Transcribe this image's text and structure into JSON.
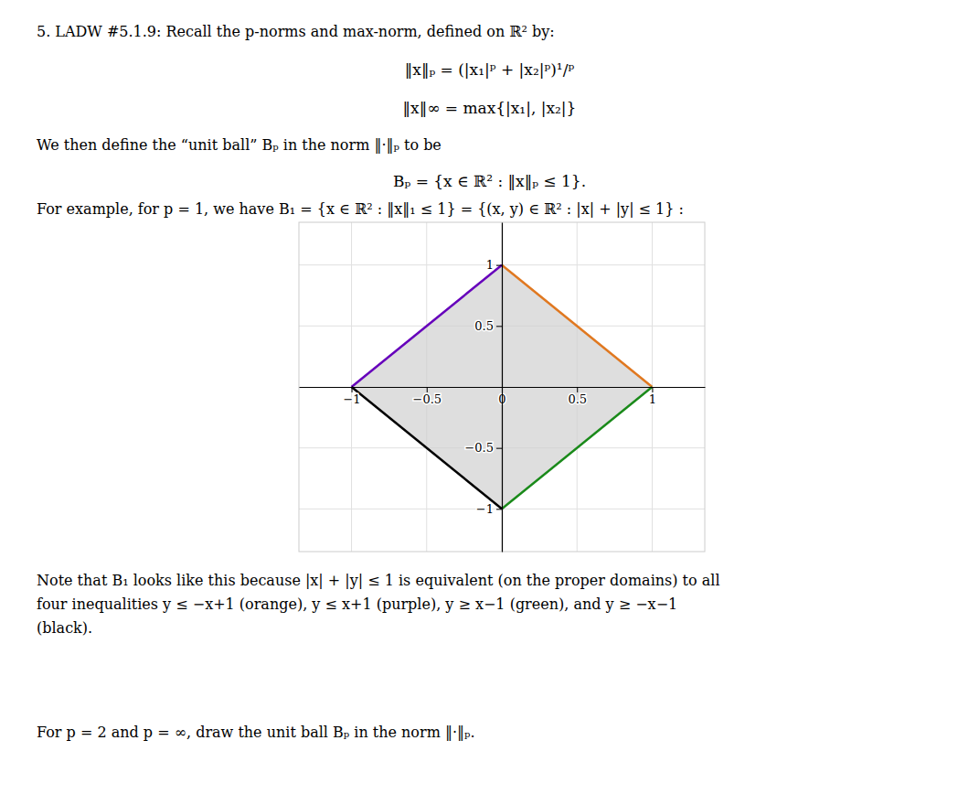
{
  "chart_data": {
    "type": "line",
    "title": "5.  LADW #5.1.9: Recall the p-norms and max-norm, defined on ℝ² by:",
    "annotations": [
      "‖x‖ₚ = (|x₁|ᵖ + |x₂|ᵖ)¹/ᵖ",
      "‖x‖∞ = max{|x₁|, |x₂|}",
      "We then define the “unit ball” Bₚ in the norm ‖·‖ₚ to be",
      "Bₚ = {x ∈ ℝ² : ‖x‖ₚ ≤ 1}.",
      "For example, for p = 1, we have B₁ = {x ∈ ℝ² : ‖x‖₁ ≤ 1} = {(x, y) ∈ ℝ² : |x| + |y| ≤ 1} :",
      "Note that B₁ looks like this because |x| + |y| ≤ 1 is equivalent (on the proper domains) to all",
      "four inequalities y ≤ −x+1 (orange),  y ≤ x+1 (purple),  y ≥ x−1 (green),  and y ≥ −x−1",
      "(black).",
      "For p = 2 and p = ∞, draw the unit ball Bₚ in the norm ‖·‖ₚ."
    ],
    "series": [
      {
        "type": "area",
        "color": "#d0d0d0",
        "x": [
          0,
          1,
          0,
          -1
        ],
        "values": [
          1,
          0,
          -1,
          0
        ]
      },
      {
        "type": "line",
        "color": "#e07820",
        "x": [
          0,
          1
        ],
        "values": [
          1,
          0
        ]
      },
      {
        "type": "line",
        "color": "#6600bb",
        "x": [
          -1,
          0
        ],
        "values": [
          0,
          1
        ]
      },
      {
        "type": "line",
        "color": "#1a8a1a",
        "x": [
          0,
          1
        ],
        "values": [
          -1,
          0
        ]
      },
      {
        "type": "line",
        "color": "#000000",
        "x": [
          -1,
          0
        ],
        "values": [
          0,
          -1
        ]
      }
    ],
    "xlim": [
      -1.35,
      1.35
    ],
    "ylim": [
      -1.35,
      1.35
    ],
    "xticks": [
      {
        "value": -1,
        "label": "−1"
      },
      {
        "value": -0.5,
        "label": "−0.5"
      },
      0,
      0.5,
      1
    ],
    "yticks": [
      {
        "value": -1,
        "label": "−1"
      },
      {
        "value": -0.5,
        "label": "−0.5"
      },
      0.5,
      1
    ],
    "grid": true
  }
}
